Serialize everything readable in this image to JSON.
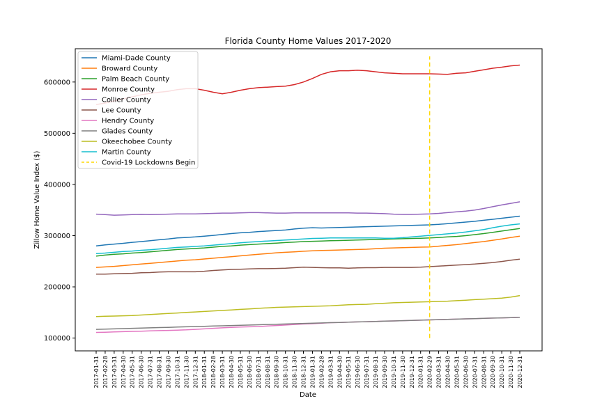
{
  "chart_data": {
    "type": "line",
    "title": "Florida County Home Values 2017-2020",
    "xlabel": "Date",
    "ylabel": "Zillow Home Value Index ($)",
    "ylim": [
      75000,
      665000
    ],
    "yticks": [
      100000,
      200000,
      300000,
      400000,
      500000,
      600000
    ],
    "ytick_labels": [
      "100000",
      "200000",
      "300000",
      "400000",
      "500000",
      "600000"
    ],
    "grid": false,
    "legend_position": "top-left",
    "x": [
      "2017-01-31",
      "2017-02-28",
      "2017-03-31",
      "2017-04-30",
      "2017-05-31",
      "2017-06-30",
      "2017-07-31",
      "2017-08-31",
      "2017-09-30",
      "2017-10-31",
      "2017-11-30",
      "2017-12-31",
      "2018-01-31",
      "2018-02-28",
      "2018-03-31",
      "2018-04-30",
      "2018-05-31",
      "2018-06-30",
      "2018-07-31",
      "2018-08-31",
      "2018-09-30",
      "2018-10-31",
      "2018-11-30",
      "2018-12-31",
      "2019-01-31",
      "2019-02-28",
      "2019-03-31",
      "2019-04-30",
      "2019-05-31",
      "2019-06-30",
      "2019-07-31",
      "2019-08-31",
      "2019-09-30",
      "2019-10-31",
      "2019-11-30",
      "2019-12-31",
      "2020-01-31",
      "2020-02-29",
      "2020-03-31",
      "2020-04-30",
      "2020-05-31",
      "2020-06-30",
      "2020-07-31",
      "2020-08-31",
      "2020-09-30",
      "2020-10-31",
      "2020-11-30",
      "2020-12-31"
    ],
    "series": [
      {
        "name": "Miami-Dade County",
        "color": "#1f77b4",
        "values": [
          280000,
          282000,
          283500,
          285000,
          287000,
          288500,
          290000,
          292000,
          293500,
          295500,
          296500,
          297500,
          299000,
          300500,
          302500,
          304000,
          305500,
          306500,
          308000,
          309000,
          310000,
          311000,
          313000,
          314500,
          315500,
          315000,
          315500,
          316000,
          316500,
          317000,
          317500,
          318000,
          318500,
          319000,
          319500,
          320000,
          320500,
          321000,
          322000,
          323500,
          325000,
          326500,
          328000,
          330000,
          332000,
          334000,
          336000,
          338000
        ]
      },
      {
        "name": "Broward County",
        "color": "#ff7f0e",
        "values": [
          238000,
          239000,
          240000,
          241500,
          243000,
          244500,
          246000,
          247500,
          249000,
          250500,
          252000,
          253000,
          254500,
          256000,
          257500,
          259000,
          260500,
          262000,
          263500,
          265000,
          266500,
          267500,
          268500,
          269500,
          270500,
          271000,
          271500,
          272000,
          272500,
          273000,
          273500,
          274500,
          275500,
          276000,
          276500,
          277000,
          277500,
          278000,
          279500,
          281000,
          282500,
          284500,
          286500,
          288500,
          291000,
          293500,
          296500,
          299000
        ]
      },
      {
        "name": "Palm Beach County",
        "color": "#2ca02c",
        "values": [
          260000,
          262000,
          263500,
          264500,
          266000,
          267000,
          268500,
          270000,
          271500,
          273000,
          274000,
          275000,
          276000,
          277500,
          279000,
          280000,
          281500,
          282500,
          283500,
          284500,
          285500,
          286500,
          287500,
          288500,
          289000,
          289500,
          290000,
          290500,
          291000,
          291500,
          292000,
          292500,
          293000,
          293500,
          294000,
          294500,
          295000,
          295500,
          296500,
          297500,
          298500,
          300000,
          302000,
          304000,
          306500,
          309000,
          311500,
          314000
        ]
      },
      {
        "name": "Monroe County",
        "color": "#d62728",
        "values": [
          556000,
          559000,
          563000,
          567000,
          571000,
          575000,
          578000,
          580000,
          582000,
          585000,
          587000,
          587000,
          584000,
          580000,
          577000,
          580000,
          584000,
          587000,
          589000,
          590000,
          591000,
          592000,
          595000,
          600000,
          607000,
          615000,
          620000,
          622000,
          622000,
          623000,
          622000,
          620000,
          618000,
          617000,
          616000,
          616000,
          616000,
          616000,
          615500,
          615000,
          617000,
          618000,
          621000,
          624000,
          627000,
          629000,
          631500,
          633000
        ]
      },
      {
        "name": "Collier County",
        "color": "#9467bd",
        "values": [
          342000,
          341000,
          340000,
          340500,
          341000,
          341500,
          341000,
          341500,
          342000,
          342500,
          342500,
          342500,
          343000,
          343500,
          344000,
          344000,
          344500,
          345000,
          345000,
          344500,
          344000,
          344000,
          344500,
          344500,
          344500,
          344500,
          344500,
          344500,
          344500,
          344000,
          344000,
          343500,
          343000,
          342000,
          341500,
          341500,
          342000,
          342500,
          343500,
          345000,
          346500,
          348000,
          350000,
          353000,
          356500,
          360000,
          363000,
          366000
        ]
      },
      {
        "name": "Lee County",
        "color": "#8c564b",
        "values": [
          225000,
          225000,
          225500,
          226000,
          226500,
          227500,
          228000,
          229000,
          229500,
          229500,
          229500,
          229500,
          230500,
          232000,
          233000,
          234000,
          234500,
          235000,
          235500,
          235500,
          236000,
          236500,
          237500,
          238500,
          238000,
          237500,
          237000,
          237000,
          236500,
          237000,
          237500,
          237500,
          238000,
          238000,
          238000,
          238000,
          238500,
          239500,
          240500,
          241500,
          242500,
          243500,
          244500,
          246000,
          247500,
          249500,
          252000,
          254000
        ]
      },
      {
        "name": "Hendry County",
        "color": "#e377c2",
        "values": [
          111000,
          111500,
          112000,
          112500,
          113000,
          113500,
          114000,
          114500,
          115000,
          115500,
          116000,
          117000,
          118000,
          119000,
          120000,
          121000,
          121500,
          122000,
          122500,
          123500,
          124500,
          125500,
          126500,
          127500,
          128000,
          129000,
          130000,
          130500,
          131000,
          131500,
          132000,
          132500,
          133000,
          133500,
          134000,
          134500,
          135000,
          135500,
          136000,
          136500,
          137000,
          137500,
          138000,
          138500,
          139000,
          139500,
          140000,
          140500
        ]
      },
      {
        "name": "Glades County",
        "color": "#7f7f7f",
        "values": [
          117000,
          117500,
          118000,
          118500,
          119000,
          119500,
          120000,
          120500,
          121000,
          121500,
          122000,
          122500,
          123000,
          123500,
          124000,
          124500,
          125000,
          125500,
          126000,
          126500,
          127000,
          127500,
          128000,
          128500,
          129000,
          129500,
          130000,
          130500,
          131000,
          131500,
          132000,
          132500,
          133000,
          133500,
          134000,
          134500,
          135000,
          135500,
          136000,
          136500,
          137000,
          137500,
          138000,
          138500,
          139000,
          139500,
          140000,
          140500
        ]
      },
      {
        "name": "Okeechobee County",
        "color": "#bcbd22",
        "values": [
          142000,
          142500,
          143000,
          143500,
          144000,
          145000,
          146000,
          147000,
          148000,
          149000,
          150000,
          151000,
          152000,
          153000,
          154000,
          155000,
          156000,
          157000,
          158000,
          159000,
          160000,
          160500,
          161000,
          161500,
          162000,
          162500,
          163000,
          164000,
          165000,
          165500,
          166000,
          167000,
          168000,
          169000,
          169500,
          170000,
          170500,
          171000,
          171500,
          172000,
          173000,
          174000,
          175000,
          176000,
          177000,
          178000,
          180000,
          183000
        ]
      },
      {
        "name": "Martin County",
        "color": "#17becf",
        "values": [
          265000,
          266000,
          267500,
          269000,
          270000,
          271500,
          272500,
          274000,
          275500,
          277000,
          278000,
          279000,
          280000,
          281500,
          283000,
          284500,
          286000,
          287500,
          288500,
          289500,
          290500,
          291500,
          292500,
          293500,
          294500,
          295000,
          295500,
          295500,
          295500,
          295500,
          295500,
          295500,
          295000,
          295000,
          296000,
          297500,
          299000,
          300500,
          302000,
          303500,
          305000,
          307000,
          309500,
          312000,
          315500,
          318500,
          321000,
          323000
        ]
      }
    ],
    "event_line": {
      "name": "Covid-19 Lockdowns Begin",
      "x": "2020-02-29",
      "y_start": 100000,
      "y_end": 650000,
      "color": "#ffd700",
      "style": "dashed"
    }
  }
}
